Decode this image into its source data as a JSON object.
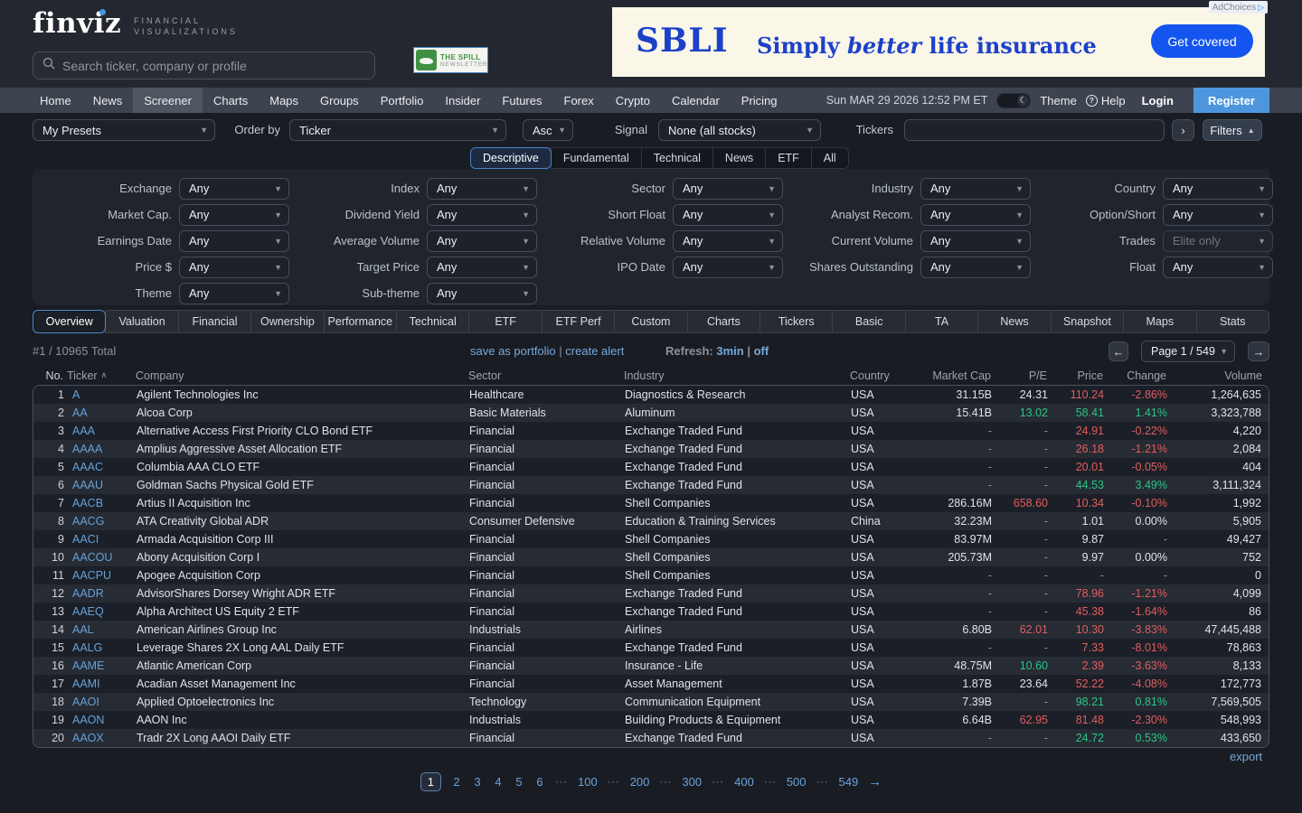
{
  "header": {
    "logo": "finviz",
    "logo_sub1": "FINANCIAL",
    "logo_sub2": "VISUALIZATIONS",
    "search_placeholder": "Search ticker, company or profile",
    "newsletter": {
      "line1": "THE SPILL",
      "line2": "NEWSLETTER"
    },
    "ad": {
      "adchoices": "AdChoices",
      "brand": "SBLI",
      "tagline_pre": "Simply ",
      "tagline_em": "better",
      "tagline_post": " life insurance",
      "cta": "Get covered"
    }
  },
  "nav": {
    "items": [
      "Home",
      "News",
      "Screener",
      "Charts",
      "Maps",
      "Groups",
      "Portfolio",
      "Insider",
      "Futures",
      "Forex",
      "Crypto",
      "Calendar",
      "Pricing"
    ],
    "active": "Screener",
    "datetime": "Sun MAR 29 2026 12:52 PM ET",
    "theme_label": "Theme",
    "help_label": "Help",
    "login_label": "Login",
    "register_label": "Register"
  },
  "controls": {
    "presets": "My Presets",
    "order_by_label": "Order by",
    "order_by": "Ticker",
    "order_dir": "Asc",
    "signal_label": "Signal",
    "signal": "None (all stocks)",
    "tickers_label": "Tickers",
    "go_button": "›",
    "filters_button": "Filters"
  },
  "filter_tabs": {
    "items": [
      "Descriptive",
      "Fundamental",
      "Technical",
      "News",
      "ETF",
      "All"
    ],
    "active": "Descriptive"
  },
  "filters": {
    "any": "Any",
    "rows": [
      [
        {
          "label": "Exchange",
          "value": "Any"
        },
        {
          "label": "Index",
          "value": "Any"
        },
        {
          "label": "Sector",
          "value": "Any"
        },
        {
          "label": "Industry",
          "value": "Any"
        },
        {
          "label": "Country",
          "value": "Any"
        }
      ],
      [
        {
          "label": "Market Cap.",
          "value": "Any"
        },
        {
          "label": "Dividend Yield",
          "value": "Any"
        },
        {
          "label": "Short Float",
          "value": "Any"
        },
        {
          "label": "Analyst Recom.",
          "value": "Any"
        },
        {
          "label": "Option/Short",
          "value": "Any"
        }
      ],
      [
        {
          "label": "Earnings Date",
          "value": "Any"
        },
        {
          "label": "Average Volume",
          "value": "Any"
        },
        {
          "label": "Relative Volume",
          "value": "Any"
        },
        {
          "label": "Current Volume",
          "value": "Any"
        },
        {
          "label": "Trades",
          "value": "Elite only",
          "disabled": true
        }
      ],
      [
        {
          "label": "Price $",
          "value": "Any"
        },
        {
          "label": "Target Price",
          "value": "Any"
        },
        {
          "label": "IPO Date",
          "value": "Any"
        },
        {
          "label": "Shares Outstanding",
          "value": "Any"
        },
        {
          "label": "Float",
          "value": "Any"
        }
      ],
      [
        {
          "label": "Theme",
          "value": "Any"
        },
        {
          "label": "Sub-theme",
          "value": "Any"
        },
        null,
        null,
        null
      ]
    ]
  },
  "result_tabs": {
    "items": [
      "Overview",
      "Valuation",
      "Financial",
      "Ownership",
      "Performance",
      "Technical",
      "ETF",
      "ETF Perf",
      "Custom",
      "Charts",
      "Tickers",
      "Basic",
      "TA",
      "News",
      "Snapshot",
      "Maps",
      "Stats"
    ],
    "active": "Overview"
  },
  "statusbar": {
    "count": "#1 / 10965 Total",
    "save_link": "save as portfolio",
    "alert_link": "create alert",
    "refresh_label": "Refresh:",
    "refresh_value": "3min",
    "refresh_off": "off",
    "page_select": "Page 1 / 549"
  },
  "table": {
    "columns": [
      "No.",
      "Ticker",
      "Company",
      "Sector",
      "Industry",
      "Country",
      "Market Cap",
      "P/E",
      "Price",
      "Change",
      "Volume"
    ],
    "sort_column": "Ticker",
    "rows": [
      {
        "no": "1",
        "ticker": "A",
        "company": "Agilent Technologies Inc",
        "sector": "Healthcare",
        "industry": "Diagnostics & Research",
        "country": "USA",
        "cap": "31.15B",
        "pe": "24.31",
        "pe_c": "",
        "price": "110.24",
        "price_c": "down",
        "chg": "-2.86%",
        "chg_c": "down",
        "vol": "1,264,635"
      },
      {
        "no": "2",
        "ticker": "AA",
        "company": "Alcoa Corp",
        "sector": "Basic Materials",
        "industry": "Aluminum",
        "country": "USA",
        "cap": "15.41B",
        "pe": "13.02",
        "pe_c": "up",
        "price": "58.41",
        "price_c": "up",
        "chg": "1.41%",
        "chg_c": "up",
        "vol": "3,323,788"
      },
      {
        "no": "3",
        "ticker": "AAA",
        "company": "Alternative Access First Priority CLO Bond ETF",
        "sector": "Financial",
        "industry": "Exchange Traded Fund",
        "country": "USA",
        "cap": "-",
        "pe": "-",
        "pe_c": "",
        "price": "24.91",
        "price_c": "down",
        "chg": "-0.22%",
        "chg_c": "down",
        "vol": "4,220"
      },
      {
        "no": "4",
        "ticker": "AAAA",
        "company": "Amplius Aggressive Asset Allocation ETF",
        "sector": "Financial",
        "industry": "Exchange Traded Fund",
        "country": "USA",
        "cap": "-",
        "pe": "-",
        "pe_c": "",
        "price": "26.18",
        "price_c": "down",
        "chg": "-1.21%",
        "chg_c": "down",
        "vol": "2,084"
      },
      {
        "no": "5",
        "ticker": "AAAC",
        "company": "Columbia AAA CLO ETF",
        "sector": "Financial",
        "industry": "Exchange Traded Fund",
        "country": "USA",
        "cap": "-",
        "pe": "-",
        "pe_c": "",
        "price": "20.01",
        "price_c": "down",
        "chg": "-0.05%",
        "chg_c": "down",
        "vol": "404"
      },
      {
        "no": "6",
        "ticker": "AAAU",
        "company": "Goldman Sachs Physical Gold ETF",
        "sector": "Financial",
        "industry": "Exchange Traded Fund",
        "country": "USA",
        "cap": "-",
        "pe": "-",
        "pe_c": "",
        "price": "44.53",
        "price_c": "up",
        "chg": "3.49%",
        "chg_c": "up",
        "vol": "3,111,324"
      },
      {
        "no": "7",
        "ticker": "AACB",
        "company": "Artius II Acquisition Inc",
        "sector": "Financial",
        "industry": "Shell Companies",
        "country": "USA",
        "cap": "286.16M",
        "pe": "658.60",
        "pe_c": "down",
        "price": "10.34",
        "price_c": "down",
        "chg": "-0.10%",
        "chg_c": "down",
        "vol": "1,992"
      },
      {
        "no": "8",
        "ticker": "AACG",
        "company": "ATA Creativity Global ADR",
        "sector": "Consumer Defensive",
        "industry": "Education & Training Services",
        "country": "China",
        "cap": "32.23M",
        "pe": "-",
        "pe_c": "",
        "price": "1.01",
        "price_c": "",
        "chg": "0.00%",
        "chg_c": "",
        "vol": "5,905"
      },
      {
        "no": "9",
        "ticker": "AACI",
        "company": "Armada Acquisition Corp III",
        "sector": "Financial",
        "industry": "Shell Companies",
        "country": "USA",
        "cap": "83.97M",
        "pe": "-",
        "pe_c": "",
        "price": "9.87",
        "price_c": "",
        "chg": "-",
        "chg_c": "",
        "vol": "49,427"
      },
      {
        "no": "10",
        "ticker": "AACOU",
        "company": "Abony Acquisition Corp I",
        "sector": "Financial",
        "industry": "Shell Companies",
        "country": "USA",
        "cap": "205.73M",
        "pe": "-",
        "pe_c": "",
        "price": "9.97",
        "price_c": "",
        "chg": "0.00%",
        "chg_c": "",
        "vol": "752"
      },
      {
        "no": "11",
        "ticker": "AACPU",
        "company": "Apogee Acquisition Corp",
        "sector": "Financial",
        "industry": "Shell Companies",
        "country": "USA",
        "cap": "-",
        "pe": "-",
        "pe_c": "",
        "price": "-",
        "price_c": "",
        "chg": "-",
        "chg_c": "",
        "vol": "0"
      },
      {
        "no": "12",
        "ticker": "AADR",
        "company": "AdvisorShares Dorsey Wright ADR ETF",
        "sector": "Financial",
        "industry": "Exchange Traded Fund",
        "country": "USA",
        "cap": "-",
        "pe": "-",
        "pe_c": "",
        "price": "78.96",
        "price_c": "down",
        "chg": "-1.21%",
        "chg_c": "down",
        "vol": "4,099"
      },
      {
        "no": "13",
        "ticker": "AAEQ",
        "company": "Alpha Architect US Equity 2 ETF",
        "sector": "Financial",
        "industry": "Exchange Traded Fund",
        "country": "USA",
        "cap": "-",
        "pe": "-",
        "pe_c": "",
        "price": "45.38",
        "price_c": "down",
        "chg": "-1.64%",
        "chg_c": "down",
        "vol": "86"
      },
      {
        "no": "14",
        "ticker": "AAL",
        "company": "American Airlines Group Inc",
        "sector": "Industrials",
        "industry": "Airlines",
        "country": "USA",
        "cap": "6.80B",
        "pe": "62.01",
        "pe_c": "down",
        "price": "10.30",
        "price_c": "down",
        "chg": "-3.83%",
        "chg_c": "down",
        "vol": "47,445,488"
      },
      {
        "no": "15",
        "ticker": "AALG",
        "company": "Leverage Shares 2X Long AAL Daily ETF",
        "sector": "Financial",
        "industry": "Exchange Traded Fund",
        "country": "USA",
        "cap": "-",
        "pe": "-",
        "pe_c": "",
        "price": "7.33",
        "price_c": "down",
        "chg": "-8.01%",
        "chg_c": "down",
        "vol": "78,863"
      },
      {
        "no": "16",
        "ticker": "AAME",
        "company": "Atlantic American Corp",
        "sector": "Financial",
        "industry": "Insurance - Life",
        "country": "USA",
        "cap": "48.75M",
        "pe": "10.60",
        "pe_c": "up",
        "price": "2.39",
        "price_c": "down",
        "chg": "-3.63%",
        "chg_c": "down",
        "vol": "8,133"
      },
      {
        "no": "17",
        "ticker": "AAMI",
        "company": "Acadian Asset Management Inc",
        "sector": "Financial",
        "industry": "Asset Management",
        "country": "USA",
        "cap": "1.87B",
        "pe": "23.64",
        "pe_c": "",
        "price": "52.22",
        "price_c": "down",
        "chg": "-4.08%",
        "chg_c": "down",
        "vol": "172,773"
      },
      {
        "no": "18",
        "ticker": "AAOI",
        "company": "Applied Optoelectronics Inc",
        "sector": "Technology",
        "industry": "Communication Equipment",
        "country": "USA",
        "cap": "7.39B",
        "pe": "-",
        "pe_c": "",
        "price": "98.21",
        "price_c": "up",
        "chg": "0.81%",
        "chg_c": "up",
        "vol": "7,569,505"
      },
      {
        "no": "19",
        "ticker": "AAON",
        "company": "AAON Inc",
        "sector": "Industrials",
        "industry": "Building Products & Equipment",
        "country": "USA",
        "cap": "6.64B",
        "pe": "62.95",
        "pe_c": "down",
        "price": "81.48",
        "price_c": "down",
        "chg": "-2.30%",
        "chg_c": "down",
        "vol": "548,993"
      },
      {
        "no": "20",
        "ticker": "AAOX",
        "company": "Tradr 2X Long AAOI Daily ETF",
        "sector": "Financial",
        "industry": "Exchange Traded Fund",
        "country": "USA",
        "cap": "-",
        "pe": "-",
        "pe_c": "",
        "price": "24.72",
        "price_c": "up",
        "chg": "0.53%",
        "chg_c": "up",
        "vol": "433,650"
      }
    ]
  },
  "pagination": {
    "items": [
      "1",
      "2",
      "3",
      "4",
      "5",
      "6",
      "···",
      "100",
      "···",
      "200",
      "···",
      "300",
      "···",
      "400",
      "···",
      "500",
      "···",
      "549"
    ],
    "active": "1",
    "arrow": "→"
  },
  "export_label": "export"
}
